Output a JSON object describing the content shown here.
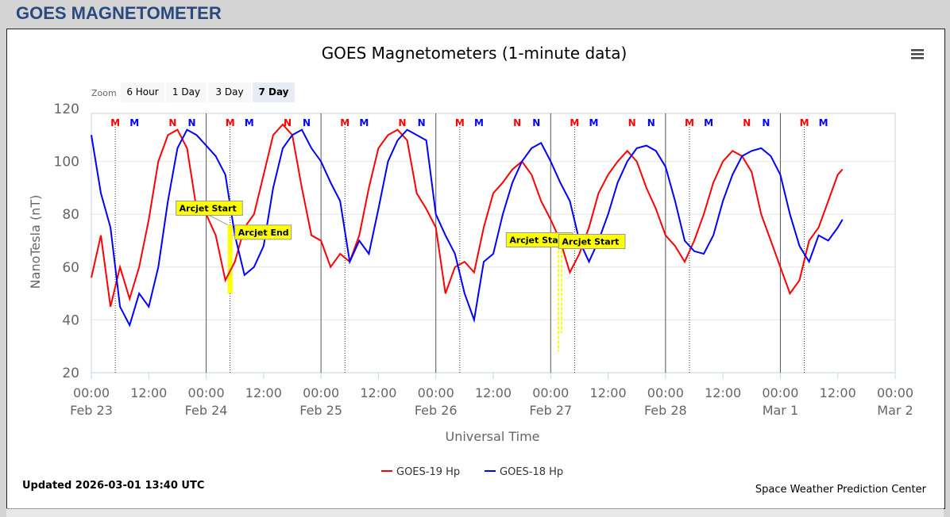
{
  "page": {
    "heading": "GOES MAGNETOMETER"
  },
  "toolbar": {
    "zoom_label": "Zoom",
    "buttons": [
      "6 Hour",
      "1 Day",
      "3 Day",
      "7 Day"
    ],
    "selected": "7 Day",
    "menu_icon": "hamburger-menu-icon"
  },
  "footer": {
    "updated": "Updated 2026-03-01 13:40 UTC",
    "credit": "Space Weather Prediction Center"
  },
  "chart_data": {
    "type": "line",
    "title": "GOES Magnetometers (1-minute data)",
    "xlabel": "Universal Time",
    "ylabel": "NanoTesla (nT)",
    "ylim": [
      20,
      120
    ],
    "yticks": [
      "20",
      "40",
      "60",
      "80",
      "100",
      "120"
    ],
    "xlim_hours": [
      0,
      168
    ],
    "xticks": [
      {
        "h": 0,
        "time": "00:00",
        "date": "Feb 23"
      },
      {
        "h": 12,
        "time": "12:00",
        "date": ""
      },
      {
        "h": 24,
        "time": "00:00",
        "date": "Feb 24"
      },
      {
        "h": 36,
        "time": "12:00",
        "date": ""
      },
      {
        "h": 48,
        "time": "00:00",
        "date": "Feb 25"
      },
      {
        "h": 60,
        "time": "12:00",
        "date": ""
      },
      {
        "h": 72,
        "time": "00:00",
        "date": "Feb 26"
      },
      {
        "h": 84,
        "time": "12:00",
        "date": ""
      },
      {
        "h": 96,
        "time": "00:00",
        "date": "Feb 27"
      },
      {
        "h": 108,
        "time": "12:00",
        "date": ""
      },
      {
        "h": 120,
        "time": "00:00",
        "date": "Feb 28"
      },
      {
        "h": 132,
        "time": "12:00",
        "date": ""
      },
      {
        "h": 144,
        "time": "00:00",
        "date": "Mar 1"
      },
      {
        "h": 156,
        "time": "12:00",
        "date": ""
      },
      {
        "h": 168,
        "time": "00:00",
        "date": "Mar 2"
      }
    ],
    "x_unit": "hours since Feb 23 00:00 UTC",
    "series": [
      {
        "name": "GOES-19 Hp",
        "color": "#ff0000",
        "x": [
          0,
          2,
          4,
          6,
          8,
          10,
          12,
          14,
          16,
          18,
          20,
          22,
          24,
          26,
          28,
          30,
          32,
          34,
          36,
          38,
          40,
          42,
          44,
          46,
          48,
          50,
          52,
          54,
          56,
          58,
          60,
          62,
          64,
          66,
          68,
          70,
          72,
          74,
          76,
          78,
          80,
          82,
          84,
          86,
          88,
          90,
          92,
          94,
          96,
          98,
          100,
          102,
          104,
          106,
          108,
          110,
          112,
          114,
          116,
          118,
          120,
          122,
          124,
          126,
          128,
          130,
          132,
          134,
          136,
          138,
          140,
          142,
          144,
          146,
          148,
          150,
          152,
          154,
          156,
          157
        ],
        "values": [
          56,
          72,
          45,
          60,
          48,
          60,
          78,
          100,
          110,
          112,
          105,
          82,
          80,
          72,
          55,
          62,
          75,
          80,
          95,
          110,
          114,
          110,
          90,
          72,
          70,
          60,
          65,
          62,
          72,
          90,
          105,
          110,
          112,
          108,
          88,
          82,
          75,
          50,
          60,
          62,
          58,
          75,
          88,
          92,
          97,
          100,
          95,
          85,
          78,
          70,
          58,
          65,
          75,
          88,
          95,
          100,
          104,
          100,
          90,
          82,
          72,
          68,
          62,
          70,
          80,
          92,
          100,
          104,
          102,
          96,
          80,
          70,
          60,
          50,
          55,
          70,
          75,
          85,
          95,
          97
        ]
      },
      {
        "name": "GOES-18 Hp",
        "color": "#0000ff",
        "x": [
          0,
          2,
          4,
          6,
          8,
          10,
          12,
          14,
          16,
          18,
          20,
          22,
          24,
          26,
          28,
          30,
          32,
          34,
          36,
          38,
          40,
          42,
          44,
          46,
          48,
          50,
          52,
          54,
          56,
          58,
          60,
          62,
          64,
          66,
          68,
          70,
          72,
          74,
          76,
          78,
          80,
          82,
          84,
          86,
          88,
          90,
          92,
          94,
          96,
          98,
          100,
          102,
          104,
          106,
          108,
          110,
          112,
          114,
          116,
          118,
          120,
          122,
          124,
          126,
          128,
          130,
          132,
          134,
          136,
          138,
          140,
          142,
          144,
          146,
          148,
          150,
          152,
          154,
          156,
          157
        ],
        "values": [
          110,
          88,
          75,
          45,
          38,
          50,
          45,
          60,
          85,
          105,
          112,
          110,
          106,
          102,
          95,
          72,
          57,
          60,
          68,
          90,
          105,
          110,
          112,
          105,
          100,
          92,
          85,
          62,
          70,
          65,
          82,
          100,
          108,
          112,
          110,
          108,
          80,
          72,
          65,
          50,
          40,
          62,
          65,
          80,
          92,
          100,
          105,
          107,
          100,
          92,
          85,
          70,
          62,
          70,
          80,
          92,
          100,
          105,
          106,
          104,
          98,
          85,
          70,
          66,
          65,
          72,
          85,
          95,
          102,
          104,
          105,
          102,
          95,
          80,
          68,
          62,
          72,
          70,
          75,
          78
        ]
      }
    ],
    "markers": [
      {
        "label": "M",
        "color": "#ff0000",
        "hours": [
          5,
          29,
          53,
          77,
          101,
          125,
          149
        ]
      },
      {
        "label": "M",
        "color": "#0000ff",
        "hours": [
          9,
          33,
          57,
          81,
          105,
          129,
          153
        ]
      },
      {
        "label": "N",
        "color": "#ff0000",
        "hours": [
          17,
          41,
          65,
          89,
          113,
          137
        ]
      },
      {
        "label": "N",
        "color": "#0000ff",
        "hours": [
          21,
          45,
          69,
          93,
          117,
          141
        ]
      }
    ],
    "annotations": [
      {
        "text": "Arcjet Start",
        "h": 28.5,
        "value": 76
      },
      {
        "text": "Arcjet End",
        "h": 29.5,
        "value": 72
      },
      {
        "text": "Arcjet Start",
        "h": 97.5,
        "value": 70
      },
      {
        "text": "Arcjet Start",
        "h": 98.5,
        "value": 70
      }
    ],
    "legend": "bottom-center"
  }
}
